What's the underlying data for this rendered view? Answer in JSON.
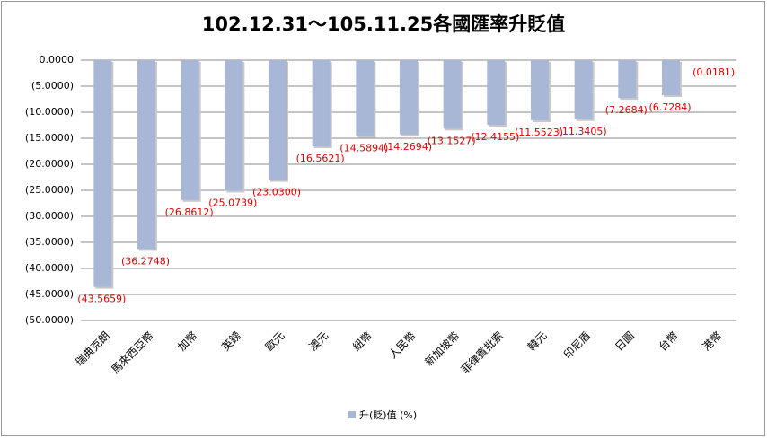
{
  "chart_data": {
    "type": "bar",
    "title": "102.12.31～105.11.25各國匯率升貶值",
    "categories": [
      "瑞典克朗",
      "馬來西亞幣",
      "加幣",
      "英鎊",
      "歐元",
      "澳元",
      "紐幣",
      "人民幣",
      "新加坡幣",
      "菲律賓批索",
      "韓元",
      "印尼盾",
      "日圓",
      "台幣",
      "港幣"
    ],
    "series": [
      {
        "name": "升(貶)值 (%)",
        "color": "#a9b7d6",
        "values": [
          -43.5659,
          -36.2748,
          -26.8612,
          -25.0739,
          -23.03,
          -16.5621,
          -14.5894,
          -14.2694,
          -13.1527,
          -12.4155,
          -11.5523,
          -11.3405,
          -7.2684,
          -6.7284,
          -0.0181
        ],
        "value_labels": [
          "(43.5659)",
          "(36.2748)",
          "(26.8612)",
          "(25.0739)",
          "(23.0300)",
          "(16.5621)",
          "(14.5894)",
          "(14.2694)",
          "(13.1527)",
          "(12.4155)",
          "(11.5523)",
          "(11.3405)",
          "(7.2684)",
          "(6.7284)",
          "(0.0181)"
        ]
      }
    ],
    "ylim": [
      -50,
      0
    ],
    "yticks": [
      {
        "value": 0,
        "label": "0.0000"
      },
      {
        "value": -5,
        "label": "(5.0000)"
      },
      {
        "value": -10,
        "label": "(10.0000)"
      },
      {
        "value": -15,
        "label": "(15.0000)"
      },
      {
        "value": -20,
        "label": "(20.0000)"
      },
      {
        "value": -25,
        "label": "(25.0000)"
      },
      {
        "value": -30,
        "label": "(30.0000)"
      },
      {
        "value": -35,
        "label": "(35.0000)"
      },
      {
        "value": -40,
        "label": "(40.0000)"
      },
      {
        "value": -45,
        "label": "(45.0000)"
      },
      {
        "value": -50,
        "label": "(50.0000)"
      }
    ],
    "grid": true,
    "label_color": "#e00000",
    "legend": "bottom"
  }
}
